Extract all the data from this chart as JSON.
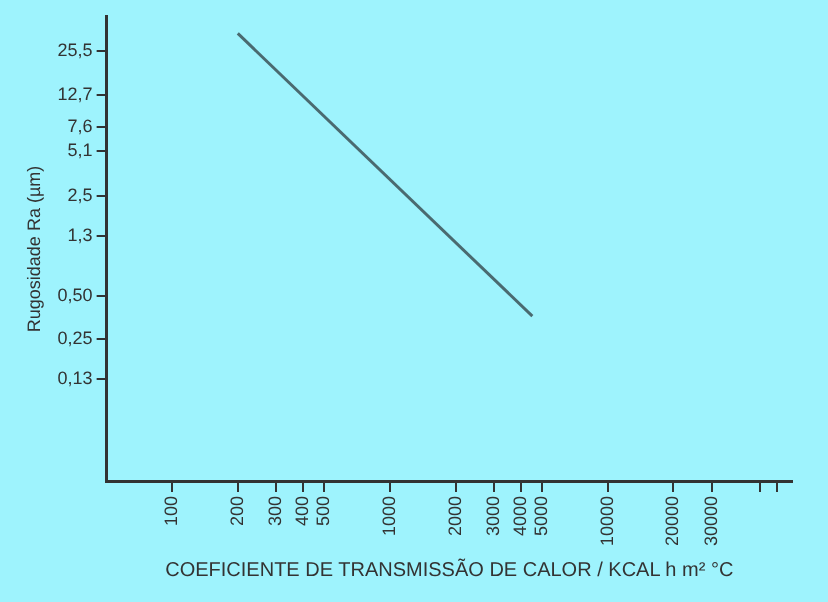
{
  "chart_data": {
    "type": "line",
    "xlabel": "COEFICIENTE DE TRANSMISSÃO DE CALOR / KCAL h m² °C",
    "ylabel": "Rugosidade Ra (µm)",
    "x": [
      200,
      4500
    ],
    "series": [
      {
        "color": "#4a6a70",
        "values": [
          34,
          0.36
        ]
      }
    ],
    "log": "xy",
    "grid": false,
    "legend": false,
    "marker": "none",
    "line_style": "solid",
    "xlim": [
      50,
      70000
    ],
    "ylim": [
      0.025,
      45
    ],
    "xticks": [
      100,
      200,
      300,
      400,
      500,
      1000,
      2000,
      3000,
      4000,
      5000,
      10000,
      20000,
      30000,
      {
        "value": 50000,
        "label": null
      },
      {
        "value": 60000,
        "label": null
      }
    ],
    "yticks": [
      {
        "value": 0.13,
        "label": "0,13"
      },
      {
        "value": 0.25,
        "label": "0,25"
      },
      {
        "value": 0.5,
        "label": "0,50"
      },
      {
        "value": 1.3,
        "label": "1,3"
      },
      {
        "value": 2.5,
        "label": "2,5"
      },
      {
        "value": 5.1,
        "label": "5,1"
      },
      {
        "value": 7.6,
        "label": "7,6"
      },
      {
        "value": 12.7,
        "label": "12,7"
      },
      {
        "value": 25.5,
        "label": "25,5"
      }
    ]
  }
}
